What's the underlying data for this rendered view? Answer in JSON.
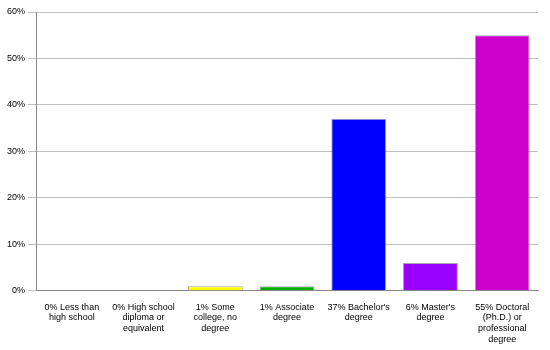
{
  "chart_data": {
    "type": "bar",
    "categories": [
      "0% Less than high school",
      "0% High school diploma or equivalent",
      "1% Some college, no degree",
      "1% Associate degree",
      "37% Bachelor's degree",
      "6% Master's degree",
      "55% Doctoral (Ph.D.) or professional degree"
    ],
    "values": [
      0,
      0,
      1,
      1,
      37,
      6,
      55
    ],
    "colors": [
      "#ff0000",
      "#ff6600",
      "#ffff00",
      "#00aa00",
      "#0000ff",
      "#9900ff",
      "#cc00cc"
    ],
    "ylim": [
      0,
      60
    ],
    "yticks": [
      {
        "value": 0,
        "label": "0%"
      },
      {
        "value": 10,
        "label": "10%"
      },
      {
        "value": 20,
        "label": "20%"
      },
      {
        "value": 30,
        "label": "30%"
      },
      {
        "value": 40,
        "label": "40%"
      },
      {
        "value": 50,
        "label": "50%"
      },
      {
        "value": 60,
        "label": "60%"
      }
    ],
    "grid": true
  }
}
